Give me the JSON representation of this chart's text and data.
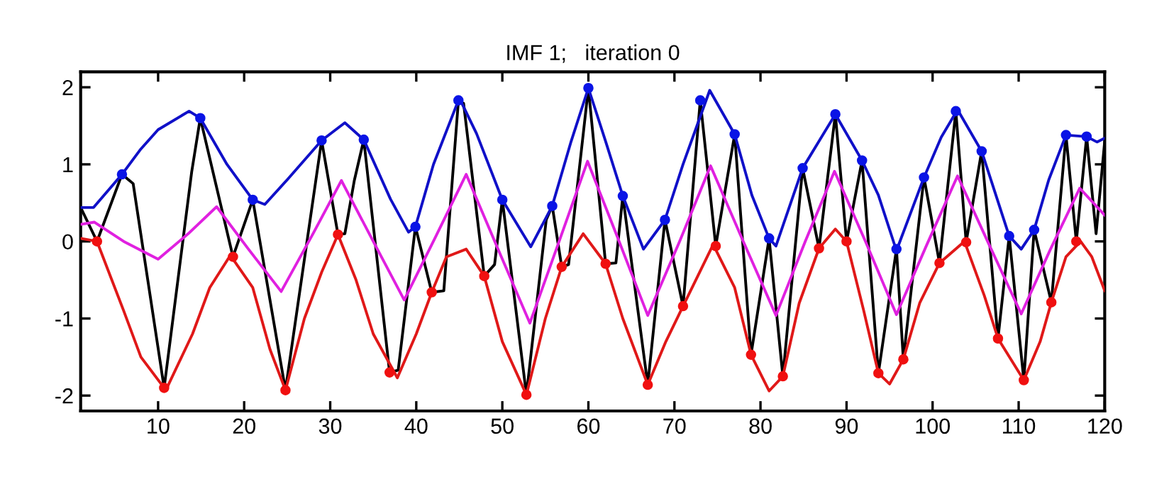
{
  "chart_data": {
    "type": "line",
    "title": "IMF 1;   iteration 0",
    "xlim": [
      1,
      120
    ],
    "ylim": [
      -2.2,
      2.2
    ],
    "xticks": [
      10,
      20,
      30,
      40,
      50,
      60,
      70,
      80,
      90,
      100,
      110,
      120
    ],
    "yticks": [
      -2,
      -1,
      0,
      1,
      2
    ],
    "grid": false,
    "series": [
      {
        "color": "#000000",
        "x": [
          1,
          2.9,
          5.8,
          7.1,
          10.7,
          13.9,
          14.9,
          18.7,
          21,
          24.8,
          29,
          30.9,
          31.7,
          32.8,
          33.9,
          36.9,
          37.9,
          39.9,
          41.8,
          43.2,
          44.9,
          45.5,
          47.9,
          49.1,
          50,
          52.8,
          55.1,
          55.8,
          56.9,
          57.7,
          60,
          62,
          63.2,
          64,
          66.9,
          68.9,
          71,
          73,
          74.8,
          77,
          78.9,
          81,
          82.6,
          84.9,
          86.8,
          88.7,
          90,
          91.8,
          93.7,
          95.8,
          96.6,
          99,
          100.8,
          102.7,
          103.9,
          105.7,
          107.6,
          108.9,
          110.6,
          111.8,
          113.8,
          115.5,
          116.7,
          117.9,
          119,
          120
        ],
        "values": [
          0.44,
          0.0,
          0.87,
          0.75,
          -1.9,
          0.9,
          1.6,
          -0.2,
          0.54,
          -1.93,
          1.31,
          0.09,
          0.1,
          0.79,
          1.32,
          -1.7,
          -1.67,
          0.19,
          -0.66,
          -0.64,
          1.83,
          1.79,
          -0.45,
          -0.3,
          0.54,
          -1.99,
          0.28,
          0.46,
          -0.33,
          -0.3,
          1.99,
          -0.29,
          -0.28,
          0.59,
          -1.86,
          0.28,
          -0.84,
          1.83,
          -0.06,
          1.39,
          -1.47,
          0.04,
          -1.75,
          0.95,
          -0.09,
          1.65,
          0.0,
          1.05,
          -1.71,
          -0.1,
          -1.53,
          0.83,
          -0.28,
          1.69,
          -0.01,
          1.17,
          -1.26,
          0.07,
          -1.8,
          0.15,
          -0.79,
          1.38,
          0.0,
          1.36,
          0.1,
          1.3
        ]
      },
      {
        "color": "#1010c8",
        "x": [
          1,
          2.5,
          5.8,
          8,
          10,
          13.6,
          14.9,
          18,
          21,
          22.4,
          25,
          29,
          31.7,
          33.9,
          37,
          39.1,
          39.9,
          42,
          45,
          47,
          50,
          53.3,
          55.8,
          58,
          60,
          62,
          64,
          66.4,
          68.9,
          71,
          74.1,
          77,
          79,
          81,
          81.8,
          84.9,
          86.8,
          88.7,
          91.8,
          93.7,
          95.8,
          99,
          101,
          102.9,
          105.7,
          108.9,
          110.3,
          111.8,
          113.5,
          115.5,
          117.9,
          119.1,
          120
        ],
        "values": [
          0.44,
          0.44,
          0.87,
          1.2,
          1.45,
          1.69,
          1.6,
          1.0,
          0.54,
          0.48,
          0.8,
          1.31,
          1.54,
          1.32,
          0.55,
          0.12,
          0.19,
          1.0,
          1.86,
          1.4,
          0.54,
          -0.07,
          0.46,
          1.3,
          1.99,
          1.3,
          0.59,
          -0.1,
          0.28,
          1.0,
          1.96,
          1.39,
          0.6,
          0.04,
          -0.06,
          0.95,
          1.3,
          1.65,
          1.05,
          0.6,
          -0.12,
          0.83,
          1.35,
          1.71,
          1.17,
          0.07,
          -0.1,
          0.15,
          0.8,
          1.38,
          1.36,
          1.29,
          1.34
        ]
      },
      {
        "color": "#e01818",
        "x": [
          1,
          2.9,
          6,
          8,
          10.9,
          14,
          16,
          18.4,
          21,
          23,
          24.8,
          27,
          29,
          30.9,
          33,
          35,
          37.8,
          40,
          41.8,
          43.5,
          45.8,
          47.9,
          50,
          52.8,
          55,
          56.9,
          59.4,
          62,
          64,
          66.9,
          69,
          71,
          74.5,
          77,
          78.9,
          81,
          82.6,
          84.5,
          86.8,
          88.7,
          90,
          92,
          93.7,
          95,
          96.6,
          98.5,
          100.8,
          103.7,
          106,
          107.6,
          110.6,
          112.5,
          113.8,
          115.5,
          117.2,
          118.5,
          120
        ],
        "values": [
          0.04,
          0.0,
          -0.9,
          -1.5,
          -1.93,
          -1.2,
          -0.6,
          -0.18,
          -0.6,
          -1.4,
          -1.93,
          -1.0,
          -0.4,
          0.09,
          -0.5,
          -1.2,
          -1.77,
          -1.2,
          -0.66,
          -0.2,
          -0.1,
          -0.45,
          -1.3,
          -1.99,
          -1.0,
          -0.33,
          0.1,
          -0.29,
          -1.0,
          -1.86,
          -1.3,
          -0.84,
          -0.04,
          -0.6,
          -1.47,
          -1.94,
          -1.75,
          -0.8,
          -0.09,
          0.16,
          0.0,
          -0.9,
          -1.71,
          -1.85,
          -1.53,
          -0.8,
          -0.28,
          0.0,
          -0.7,
          -1.26,
          -1.8,
          -1.3,
          -0.79,
          -0.2,
          0.0,
          -0.2,
          -0.64
        ]
      },
      {
        "color": "#e020e0",
        "x": [
          1,
          2.6,
          6,
          10,
          13.5,
          16.8,
          20.5,
          24.3,
          28,
          31.3,
          35,
          38.6,
          42.2,
          45.8,
          49.5,
          53.2,
          56.6,
          59.9,
          63.4,
          66.9,
          70.6,
          74.2,
          78,
          81.8,
          85.2,
          88.6,
          92.2,
          95.8,
          99.3,
          102.9,
          106.6,
          110.3,
          113.7,
          117.1,
          120
        ],
        "values": [
          0.22,
          0.25,
          0.0,
          -0.23,
          0.1,
          0.45,
          -0.1,
          -0.65,
          0.1,
          0.79,
          0.0,
          -0.76,
          0.05,
          0.87,
          -0.1,
          -1.06,
          0.0,
          1.04,
          0.05,
          -0.96,
          0.0,
          0.98,
          0.0,
          -0.96,
          0.0,
          0.91,
          0.0,
          -0.95,
          -0.05,
          0.85,
          -0.05,
          -0.94,
          -0.1,
          0.69,
          0.34
        ]
      },
      {
        "type": "scatter",
        "marker": "circle",
        "color": "#0a14e6",
        "x": [
          5.8,
          14.9,
          21,
          29,
          33.9,
          39.9,
          44.9,
          50,
          55.8,
          60,
          64,
          68.9,
          73,
          77,
          81,
          84.9,
          88.7,
          91.8,
          95.8,
          99,
          102.7,
          105.7,
          108.9,
          111.8,
          115.5,
          117.9
        ],
        "values": [
          0.87,
          1.6,
          0.54,
          1.31,
          1.32,
          0.19,
          1.83,
          0.54,
          0.46,
          1.99,
          0.59,
          0.28,
          1.83,
          1.39,
          0.04,
          0.95,
          1.65,
          1.05,
          -0.1,
          0.83,
          1.69,
          1.17,
          0.07,
          0.15,
          1.38,
          1.36
        ]
      },
      {
        "type": "scatter",
        "marker": "circle",
        "color": "#f01010",
        "x": [
          2.9,
          10.7,
          18.7,
          24.8,
          30.9,
          36.9,
          41.8,
          47.9,
          52.8,
          56.9,
          62,
          66.9,
          71,
          74.8,
          78.9,
          82.6,
          86.8,
          90,
          93.7,
          96.6,
          100.8,
          103.9,
          107.6,
          110.6,
          113.8,
          116.7
        ],
        "values": [
          0.0,
          -1.9,
          -0.2,
          -1.93,
          0.09,
          -1.7,
          -0.66,
          -0.45,
          -1.99,
          -0.33,
          -0.29,
          -1.86,
          -0.84,
          -0.06,
          -1.47,
          -1.75,
          -0.09,
          0.0,
          -1.71,
          -1.53,
          -0.28,
          -0.01,
          -1.26,
          -1.8,
          -0.79,
          0.0
        ]
      }
    ]
  }
}
